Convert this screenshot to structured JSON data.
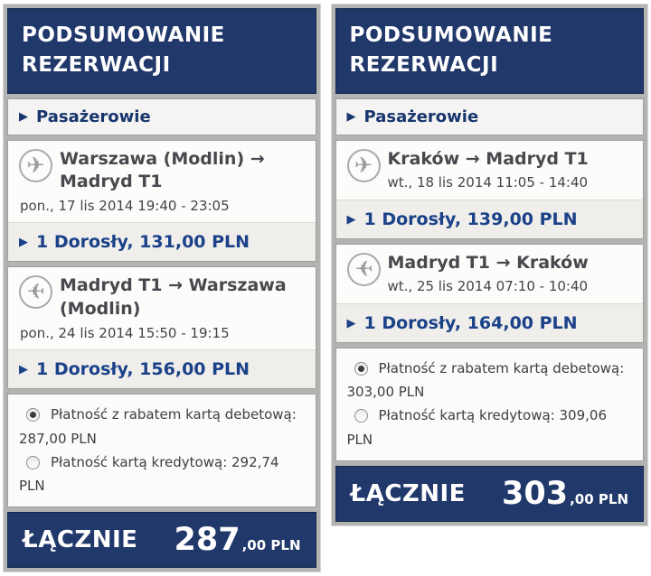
{
  "icons": {
    "plane": "✈",
    "triangle": "▶"
  },
  "colors": {
    "navy": "#21386b",
    "price_blue": "#1b4189",
    "frame_gray": "#b3b3b1"
  },
  "panels": [
    {
      "title": "PODSUMOWANIE REZERWACJI",
      "passengers_label": "Pasażerowie",
      "flights": [
        {
          "direction": "outbound",
          "route": "Warszawa (Modlin) → Madryd T1",
          "datetime": "pon., 17 lis 2014 19:40 - 23:05",
          "price_line": "1 Dorosły, 131,00 PLN"
        },
        {
          "direction": "return",
          "route": "Madryd T1 → Warszawa (Modlin)",
          "datetime": "pon., 24 lis 2014 15:50 - 19:15",
          "price_line": "1 Dorosły, 156,00 PLN"
        }
      ],
      "payment_options": [
        {
          "label": "Płatność z rabatem kartą debetową: 287,00 PLN",
          "selected": true
        },
        {
          "label": "Płatność kartą kredytową: 292,74 PLN",
          "selected": false
        }
      ],
      "total_label": "ŁĄCZNIE",
      "total_main": "287",
      "total_suffix": ",00 PLN"
    },
    {
      "title": "PODSUMOWANIE REZERWACJI",
      "passengers_label": "Pasażerowie",
      "flights": [
        {
          "direction": "outbound",
          "route": "Kraków → Madryd T1",
          "datetime": "wt., 18 lis 2014 11:05 - 14:40",
          "price_line": "1 Dorosły, 139,00 PLN"
        },
        {
          "direction": "return",
          "route": "Madryd T1 → Kraków",
          "datetime": "wt., 25 lis 2014 07:10 - 10:40",
          "price_line": "1 Dorosły, 164,00 PLN"
        }
      ],
      "payment_options": [
        {
          "label": "Płatność z rabatem kartą debetową: 303,00 PLN",
          "selected": true
        },
        {
          "label": "Płatność kartą kredytową: 309,06 PLN",
          "selected": false
        }
      ],
      "total_label": "ŁĄCZNIE",
      "total_main": "303",
      "total_suffix": ",00 PLN"
    }
  ]
}
